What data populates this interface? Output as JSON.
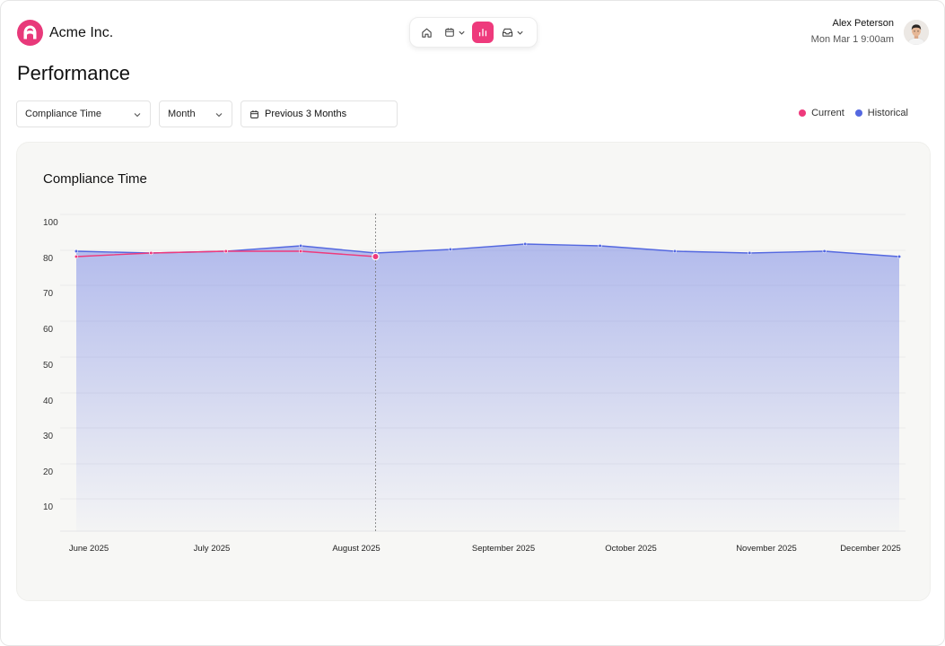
{
  "brand": {
    "name": "Acme Inc."
  },
  "toolbar": {
    "items": [
      {
        "icon": "home-icon"
      },
      {
        "icon": "calendar-icon"
      },
      {
        "icon": "bar-chart-icon",
        "active": true
      },
      {
        "icon": "inbox-icon"
      }
    ],
    "active_color": "#ee3a7c"
  },
  "user": {
    "name": "Alex Peterson",
    "date": "Mon Mar 1 9:00am"
  },
  "page": {
    "title": "Performance"
  },
  "filters": {
    "metric": "Compliance Time",
    "period": "Month",
    "range": "Previous 3 Months"
  },
  "legend": {
    "current": {
      "label": "Current",
      "color": "#ee3a7c"
    },
    "historical": {
      "label": "Historical",
      "color": "#5468e0"
    }
  },
  "chart_data": {
    "type": "area",
    "title": "Compliance Time",
    "y_ticks": [
      10,
      20,
      30,
      40,
      50,
      60,
      70,
      80,
      100
    ],
    "ylim": [
      0,
      100
    ],
    "x_labels": [
      "June 2025",
      "July 2025",
      "August 2025",
      "September 2025",
      "October 2025",
      "November 2025",
      "December 2025"
    ],
    "series": [
      {
        "name": "Historical",
        "values": [
          84,
          83,
          84,
          87,
          83,
          85,
          88,
          87,
          84,
          83,
          84,
          81
        ]
      },
      {
        "name": "Current",
        "values": [
          81,
          83,
          84,
          84,
          81
        ]
      }
    ],
    "grid": true,
    "legend_position": "top-right"
  }
}
